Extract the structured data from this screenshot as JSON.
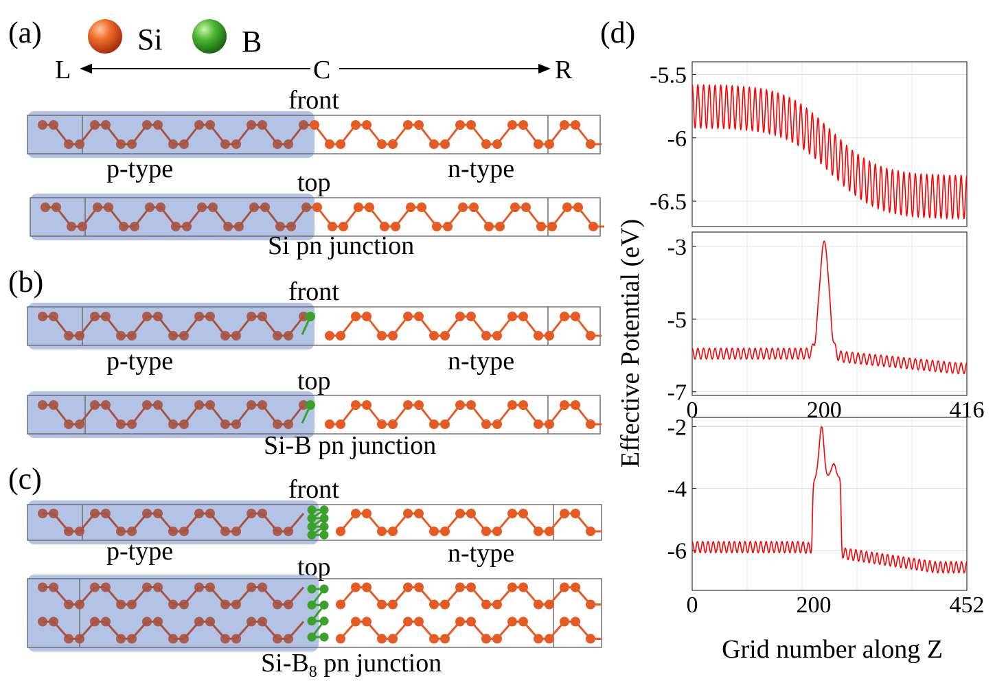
{
  "labels": {
    "panel_a": "(a)",
    "panel_b": "(b)",
    "panel_c": "(c)",
    "panel_d": "(d)"
  },
  "legend": {
    "si": "Si",
    "b": "B",
    "si_color": "#e65a24",
    "b_color": "#3aa12a"
  },
  "direction": {
    "left": "L",
    "center": "C",
    "right": "R"
  },
  "panels": [
    {
      "front": "front",
      "top": "top",
      "left_region": "p-type",
      "right_region": "n-type",
      "caption": "Si pn junction",
      "dopant": "none"
    },
    {
      "front": "front",
      "top": "top",
      "left_region": "p-type",
      "right_region": "n-type",
      "caption": "Si-B pn junction",
      "dopant": "B"
    },
    {
      "front": "front",
      "top": "top",
      "left_region": "p-type",
      "right_region": "n-type",
      "caption_main": "Si-B",
      "caption_sub": "8",
      "caption_rest": " pn junction",
      "dopant": "B8"
    }
  ],
  "colors": {
    "p_region": "#9fb4e0",
    "si_dark": "#a8523e",
    "si_bright": "#e65a24",
    "dopant": "#3aa12a",
    "curve": "#ff0000",
    "frame": "#666666"
  },
  "chart_data": [
    {
      "type": "line",
      "title": "",
      "xlabel": "",
      "ylabel": "Effective Potential (eV)",
      "xlim": [
        0,
        416
      ],
      "ylim": [
        -6.7,
        -5.4
      ],
      "yticks": [
        "-5.5",
        "-6",
        "-6.5"
      ],
      "ytick_values": [
        -5.5,
        -6,
        -6.5
      ],
      "xticks": [],
      "series": [
        {
          "name": "Si pn junction",
          "model": "step",
          "osc_amplitude": 0.17,
          "oscillations": 48,
          "left_level": -5.75,
          "right_level": -6.47,
          "step_center": 210,
          "step_width": 35
        }
      ]
    },
    {
      "type": "line",
      "title": "",
      "xlabel": "",
      "ylabel": "",
      "xlim": [
        0,
        416
      ],
      "ylim": [
        -7.1,
        -2.6
      ],
      "yticks": [
        "-3",
        "-5",
        "-7"
      ],
      "ytick_values": [
        -3,
        -5,
        -7
      ],
      "xticks": [
        "0",
        "200",
        "416"
      ],
      "xtick_values": [
        0,
        200,
        416
      ],
      "series": [
        {
          "name": "Si-B pn junction",
          "model": "peak",
          "osc_amplitude": 0.15,
          "oscillations": 48,
          "left_level": -5.95,
          "right_level": -6.35,
          "peaks": [
            {
              "x": 200,
              "height": -2.85,
              "width": 7
            }
          ]
        }
      ]
    },
    {
      "type": "line",
      "title": "",
      "xlabel": "Grid number along Z",
      "ylabel": "",
      "xlim": [
        0,
        452
      ],
      "ylim": [
        -7.3,
        -1.7
      ],
      "yticks": [
        "-2",
        "-4",
        "-6"
      ],
      "ytick_values": [
        -2,
        -4,
        -6
      ],
      "xticks": [
        "0",
        "200",
        "452"
      ],
      "xtick_values": [
        0,
        200,
        452
      ],
      "series": [
        {
          "name": "Si-B8 pn junction",
          "model": "plateau",
          "osc_amplitude": 0.18,
          "oscillations": 52,
          "left_level": -5.9,
          "right_level": -6.55,
          "plateau_from": 198,
          "plateau_to": 245,
          "plateau_level": -3.7,
          "peaks": [
            {
              "x": 213,
              "height": -2.0,
              "width": 4
            },
            {
              "x": 233,
              "height": -3.2,
              "width": 4
            }
          ]
        }
      ]
    }
  ]
}
